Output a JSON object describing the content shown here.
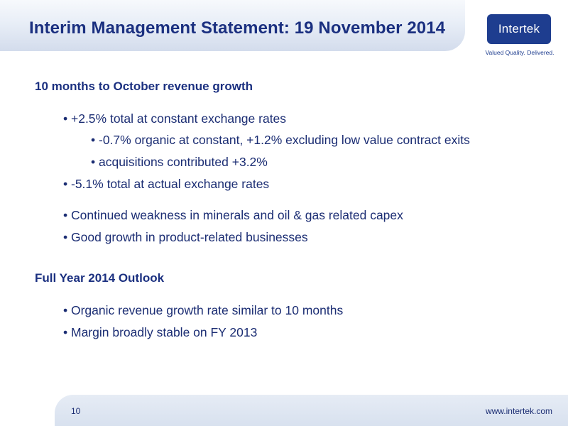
{
  "header": {
    "title": "Interim Management Statement: 19 November 2014"
  },
  "logo": {
    "word": "Intertek",
    "tagline": "Valued Quality. Delivered."
  },
  "sections": [
    {
      "heading": "10 months to October revenue growth",
      "bullets": [
        "• +2.5% total at constant exchange rates",
        "•  -0.7% organic at constant, +1.2% excluding low value contract exits",
        "•   acquisitions contributed +3.2%",
        "•  -5.1% total at actual exchange rates",
        "• Continued weakness in minerals and oil & gas related capex",
        "• Good growth in product-related businesses"
      ]
    },
    {
      "heading": "Full Year 2014 Outlook",
      "bullets": [
        "• Organic revenue growth rate similar to 10 months",
        "• Margin broadly stable on FY 2013"
      ]
    }
  ],
  "footer": {
    "page_number": "10",
    "website": "www.intertek.com"
  },
  "colors": {
    "primary": "#1b3080",
    "logo_background": "#1e3d8f"
  }
}
